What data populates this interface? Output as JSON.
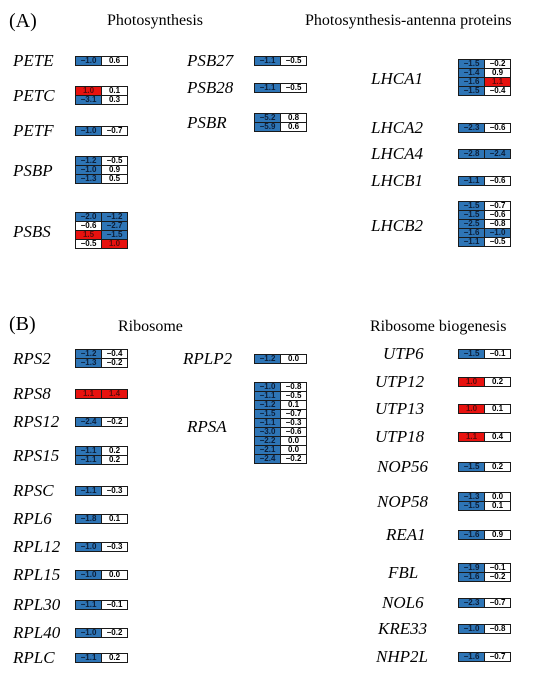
{
  "colors": {
    "blue": "#2e75b6",
    "red": "#e8120f",
    "white": "#ffffff"
  },
  "panels": [
    {
      "label": "(A)",
      "sections": [
        {
          "title": "Photosynthesis",
          "genes": [
            {
              "name": "PETE",
              "rows": [
                [
                  {
                    "v": "−1.0",
                    "c": "blue"
                  },
                  {
                    "v": "0.6",
                    "c": "white"
                  }
                ]
              ]
            },
            {
              "name": "PETC",
              "rows": [
                [
                  {
                    "v": "1.0",
                    "c": "red"
                  },
                  {
                    "v": "0.1",
                    "c": "white"
                  }
                ],
                [
                  {
                    "v": "−3.1",
                    "c": "blue"
                  },
                  {
                    "v": "0.3",
                    "c": "white"
                  }
                ]
              ]
            },
            {
              "name": "PETF",
              "rows": [
                [
                  {
                    "v": "−1.0",
                    "c": "blue"
                  },
                  {
                    "v": "−0.7",
                    "c": "white"
                  }
                ]
              ]
            },
            {
              "name": "PSBP",
              "rows": [
                [
                  {
                    "v": "−1.2",
                    "c": "blue"
                  },
                  {
                    "v": "−0.5",
                    "c": "white"
                  }
                ],
                [
                  {
                    "v": "−1.0",
                    "c": "blue"
                  },
                  {
                    "v": "0.9",
                    "c": "white"
                  }
                ],
                [
                  {
                    "v": "−1.3",
                    "c": "blue"
                  },
                  {
                    "v": "0.5",
                    "c": "white"
                  }
                ]
              ]
            },
            {
              "name": "PSBS",
              "rows": [
                [
                  {
                    "v": "−2.0",
                    "c": "blue"
                  },
                  {
                    "v": "−1.2",
                    "c": "blue"
                  }
                ],
                [
                  {
                    "v": "−0.6",
                    "c": "white"
                  },
                  {
                    "v": "−2.7",
                    "c": "blue"
                  }
                ],
                [
                  {
                    "v": "1.5",
                    "c": "red"
                  },
                  {
                    "v": "−1.5",
                    "c": "blue"
                  }
                ],
                [
                  {
                    "v": "−0.5",
                    "c": "white"
                  },
                  {
                    "v": "1.0",
                    "c": "red"
                  }
                ]
              ]
            },
            {
              "name": "PSB27",
              "rows": [
                [
                  {
                    "v": "−1.1",
                    "c": "blue"
                  },
                  {
                    "v": "−0.5",
                    "c": "white"
                  }
                ]
              ]
            },
            {
              "name": "PSB28",
              "rows": [
                [
                  {
                    "v": "−1.1",
                    "c": "blue"
                  },
                  {
                    "v": "−0.5",
                    "c": "white"
                  }
                ]
              ]
            },
            {
              "name": "PSBR",
              "rows": [
                [
                  {
                    "v": "−5.2",
                    "c": "blue"
                  },
                  {
                    "v": "0.8",
                    "c": "white"
                  }
                ],
                [
                  {
                    "v": "−5.9",
                    "c": "blue"
                  },
                  {
                    "v": "0.6",
                    "c": "white"
                  }
                ]
              ]
            }
          ]
        },
        {
          "title": "Photosynthesis-antenna proteins",
          "genes": [
            {
              "name": "LHCA1",
              "rows": [
                [
                  {
                    "v": "−1.5",
                    "c": "blue"
                  },
                  {
                    "v": "−0.2",
                    "c": "white"
                  }
                ],
                [
                  {
                    "v": "−1.4",
                    "c": "blue"
                  },
                  {
                    "v": "0.9",
                    "c": "white"
                  }
                ],
                [
                  {
                    "v": "−1.6",
                    "c": "blue"
                  },
                  {
                    "v": "1.1",
                    "c": "red"
                  }
                ],
                [
                  {
                    "v": "−1.5",
                    "c": "blue"
                  },
                  {
                    "v": "−0.4",
                    "c": "white"
                  }
                ]
              ]
            },
            {
              "name": "LHCA2",
              "rows": [
                [
                  {
                    "v": "−2.3",
                    "c": "blue"
                  },
                  {
                    "v": "−0.6",
                    "c": "white"
                  }
                ]
              ]
            },
            {
              "name": "LHCA4",
              "rows": [
                [
                  {
                    "v": "−2.8",
                    "c": "blue"
                  },
                  {
                    "v": "−2.4",
                    "c": "blue"
                  }
                ]
              ]
            },
            {
              "name": "LHCB1",
              "rows": [
                [
                  {
                    "v": "−1.1",
                    "c": "blue"
                  },
                  {
                    "v": "−0.6",
                    "c": "white"
                  }
                ]
              ]
            },
            {
              "name": "LHCB2",
              "rows": [
                [
                  {
                    "v": "−1.5",
                    "c": "blue"
                  },
                  {
                    "v": "−0.7",
                    "c": "white"
                  }
                ],
                [
                  {
                    "v": "−1.5",
                    "c": "blue"
                  },
                  {
                    "v": "−0.6",
                    "c": "white"
                  }
                ],
                [
                  {
                    "v": "−2.5",
                    "c": "blue"
                  },
                  {
                    "v": "−0.8",
                    "c": "white"
                  }
                ],
                [
                  {
                    "v": "−1.6",
                    "c": "blue"
                  },
                  {
                    "v": "−1.0",
                    "c": "blue"
                  }
                ],
                [
                  {
                    "v": "−1.1",
                    "c": "blue"
                  },
                  {
                    "v": "−0.5",
                    "c": "white"
                  }
                ]
              ]
            }
          ]
        }
      ]
    },
    {
      "label": "(B)",
      "sections": [
        {
          "title": "Ribosome",
          "genes": [
            {
              "name": "RPS2",
              "rows": [
                [
                  {
                    "v": "−1.2",
                    "c": "blue"
                  },
                  {
                    "v": "−0.4",
                    "c": "white"
                  }
                ],
                [
                  {
                    "v": "−1.3",
                    "c": "blue"
                  },
                  {
                    "v": "−0.2",
                    "c": "white"
                  }
                ]
              ]
            },
            {
              "name": "RPS8",
              "rows": [
                [
                  {
                    "v": "1.1",
                    "c": "red"
                  },
                  {
                    "v": "1.4",
                    "c": "red"
                  }
                ]
              ]
            },
            {
              "name": "RPS12",
              "rows": [
                [
                  {
                    "v": "−2.4",
                    "c": "blue"
                  },
                  {
                    "v": "−0.2",
                    "c": "white"
                  }
                ]
              ]
            },
            {
              "name": "RPS15",
              "rows": [
                [
                  {
                    "v": "−1.1",
                    "c": "blue"
                  },
                  {
                    "v": "0.2",
                    "c": "white"
                  }
                ],
                [
                  {
                    "v": "−1.1",
                    "c": "blue"
                  },
                  {
                    "v": "0.2",
                    "c": "white"
                  }
                ]
              ]
            },
            {
              "name": "RPSC",
              "rows": [
                [
                  {
                    "v": "−1.1",
                    "c": "blue"
                  },
                  {
                    "v": "−0.3",
                    "c": "white"
                  }
                ]
              ]
            },
            {
              "name": "RPL6",
              "rows": [
                [
                  {
                    "v": "−1.8",
                    "c": "blue"
                  },
                  {
                    "v": "0.1",
                    "c": "white"
                  }
                ]
              ]
            },
            {
              "name": "RPL12",
              "rows": [
                [
                  {
                    "v": "−1.0",
                    "c": "blue"
                  },
                  {
                    "v": "−0.3",
                    "c": "white"
                  }
                ]
              ]
            },
            {
              "name": "RPL15",
              "rows": [
                [
                  {
                    "v": "−1.0",
                    "c": "blue"
                  },
                  {
                    "v": "0.0",
                    "c": "white"
                  }
                ]
              ]
            },
            {
              "name": "RPL30",
              "rows": [
                [
                  {
                    "v": "−1.1",
                    "c": "blue"
                  },
                  {
                    "v": "−0.1",
                    "c": "white"
                  }
                ]
              ]
            },
            {
              "name": "RPL40",
              "rows": [
                [
                  {
                    "v": "−1.0",
                    "c": "blue"
                  },
                  {
                    "v": "−0.2",
                    "c": "white"
                  }
                ]
              ]
            },
            {
              "name": "RPLC",
              "rows": [
                [
                  {
                    "v": "−1.1",
                    "c": "blue"
                  },
                  {
                    "v": "0.2",
                    "c": "white"
                  }
                ]
              ]
            },
            {
              "name": "RPLP2",
              "rows": [
                [
                  {
                    "v": "−1.2",
                    "c": "blue"
                  },
                  {
                    "v": "0.0",
                    "c": "white"
                  }
                ]
              ]
            },
            {
              "name": "RPSA",
              "rows": [
                [
                  {
                    "v": "−1.0",
                    "c": "blue"
                  },
                  {
                    "v": "−0.8",
                    "c": "white"
                  }
                ],
                [
                  {
                    "v": "−1.1",
                    "c": "blue"
                  },
                  {
                    "v": "−0.5",
                    "c": "white"
                  }
                ],
                [
                  {
                    "v": "−1.2",
                    "c": "blue"
                  },
                  {
                    "v": "0.1",
                    "c": "white"
                  }
                ],
                [
                  {
                    "v": "−1.5",
                    "c": "blue"
                  },
                  {
                    "v": "−0.7",
                    "c": "white"
                  }
                ],
                [
                  {
                    "v": "−1.1",
                    "c": "blue"
                  },
                  {
                    "v": "−0.3",
                    "c": "white"
                  }
                ],
                [
                  {
                    "v": "−3.0",
                    "c": "blue"
                  },
                  {
                    "v": "−0.6",
                    "c": "white"
                  }
                ],
                [
                  {
                    "v": "−2.2",
                    "c": "blue"
                  },
                  {
                    "v": "0.0",
                    "c": "white"
                  }
                ],
                [
                  {
                    "v": "−2.1",
                    "c": "blue"
                  },
                  {
                    "v": "0.0",
                    "c": "white"
                  }
                ],
                [
                  {
                    "v": "−2.4",
                    "c": "blue"
                  },
                  {
                    "v": "−0.2",
                    "c": "white"
                  }
                ]
              ]
            }
          ]
        },
        {
          "title": "Ribosome biogenesis",
          "genes": [
            {
              "name": "UTP6",
              "rows": [
                [
                  {
                    "v": "−1.5",
                    "c": "blue"
                  },
                  {
                    "v": "−0.1",
                    "c": "white"
                  }
                ]
              ]
            },
            {
              "name": "UTP12",
              "rows": [
                [
                  {
                    "v": "1.0",
                    "c": "red"
                  },
                  {
                    "v": "0.2",
                    "c": "white"
                  }
                ]
              ]
            },
            {
              "name": "UTP13",
              "rows": [
                [
                  {
                    "v": "1.0",
                    "c": "red"
                  },
                  {
                    "v": "0.1",
                    "c": "white"
                  }
                ]
              ]
            },
            {
              "name": "UTP18",
              "rows": [
                [
                  {
                    "v": "1.1",
                    "c": "red"
                  },
                  {
                    "v": "0.4",
                    "c": "white"
                  }
                ]
              ]
            },
            {
              "name": "NOP56",
              "rows": [
                [
                  {
                    "v": "−1.5",
                    "c": "blue"
                  },
                  {
                    "v": "0.2",
                    "c": "white"
                  }
                ]
              ]
            },
            {
              "name": "NOP58",
              "rows": [
                [
                  {
                    "v": "−1.3",
                    "c": "blue"
                  },
                  {
                    "v": "0.0",
                    "c": "white"
                  }
                ],
                [
                  {
                    "v": "−1.5",
                    "c": "blue"
                  },
                  {
                    "v": "0.1",
                    "c": "white"
                  }
                ]
              ]
            },
            {
              "name": "REA1",
              "rows": [
                [
                  {
                    "v": "−1.6",
                    "c": "blue"
                  },
                  {
                    "v": "0.9",
                    "c": "white"
                  }
                ]
              ]
            },
            {
              "name": "FBL",
              "rows": [
                [
                  {
                    "v": "−1.9",
                    "c": "blue"
                  },
                  {
                    "v": "−0.1",
                    "c": "white"
                  }
                ],
                [
                  {
                    "v": "−1.6",
                    "c": "blue"
                  },
                  {
                    "v": "−0.2",
                    "c": "white"
                  }
                ]
              ]
            },
            {
              "name": "NOL6",
              "rows": [
                [
                  {
                    "v": "−2.3",
                    "c": "blue"
                  },
                  {
                    "v": "−0.7",
                    "c": "white"
                  }
                ]
              ]
            },
            {
              "name": "KRE33",
              "rows": [
                [
                  {
                    "v": "−1.0",
                    "c": "blue"
                  },
                  {
                    "v": "−0.8",
                    "c": "white"
                  }
                ]
              ]
            },
            {
              "name": "NHP2L",
              "rows": [
                [
                  {
                    "v": "−1.6",
                    "c": "blue"
                  },
                  {
                    "v": "−0.7",
                    "c": "white"
                  }
                ]
              ]
            }
          ]
        }
      ]
    }
  ]
}
